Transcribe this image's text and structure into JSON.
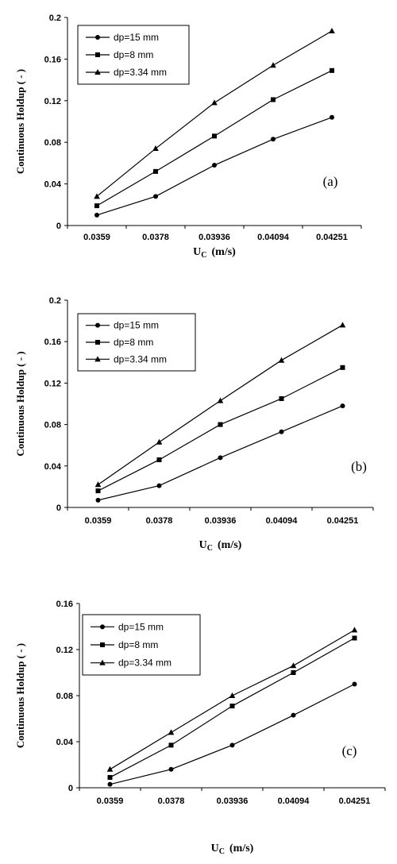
{
  "chart_data": [
    {
      "type": "line",
      "panel_label": "(a)",
      "categories": [
        "0.0359",
        "0.0378",
        "0.03936",
        "0.04094",
        "0.04251"
      ],
      "ylabel": "Continuous Holdup ( - )",
      "xlabel_main": "U",
      "xlabel_sub": "C",
      "xlabel_unit": "(m/s)",
      "ylim": [
        0,
        0.2
      ],
      "yticks": [
        "0",
        "0.04",
        "0.08",
        "0.12",
        "0.16",
        "0.2"
      ],
      "legend_position": "top-left",
      "grid": false,
      "series": [
        {
          "name": "dp=15 mm",
          "marker": "circle",
          "values": [
            0.01,
            0.028,
            0.058,
            0.083,
            0.104
          ]
        },
        {
          "name": "dp=8 mm",
          "marker": "square",
          "values": [
            0.019,
            0.052,
            0.086,
            0.121,
            0.149
          ]
        },
        {
          "name": "dp=3.34 mm",
          "marker": "triangle",
          "values": [
            0.028,
            0.074,
            0.118,
            0.154,
            0.187
          ]
        }
      ]
    },
    {
      "type": "line",
      "panel_label": "(b)",
      "categories": [
        "0.0359",
        "0.0378",
        "0.03936",
        "0.04094",
        "0.04251"
      ],
      "ylabel": "Continuous Holdup ( - )",
      "xlabel_main": "U",
      "xlabel_sub": "C",
      "xlabel_unit": "(m/s)",
      "ylim": [
        0,
        0.2
      ],
      "yticks": [
        "0",
        "0.04",
        "0.08",
        "0.12",
        "0.16",
        "0.2"
      ],
      "legend_position": "top-left",
      "grid": false,
      "series": [
        {
          "name": "dp=15 mm",
          "marker": "circle",
          "values": [
            0.007,
            0.021,
            0.048,
            0.073,
            0.098
          ]
        },
        {
          "name": "dp=8 mm",
          "marker": "square",
          "values": [
            0.016,
            0.046,
            0.08,
            0.105,
            0.135
          ]
        },
        {
          "name": "dp=3.34 mm",
          "marker": "triangle",
          "values": [
            0.022,
            0.063,
            0.103,
            0.142,
            0.176
          ]
        }
      ]
    },
    {
      "type": "line",
      "panel_label": "(c)",
      "categories": [
        "0.0359",
        "0.0378",
        "0.03936",
        "0.04094",
        "0.04251"
      ],
      "ylabel": "Continuous Holdup ( - )",
      "xlabel_main": "U",
      "xlabel_sub": "C",
      "xlabel_unit": "(m/s)",
      "ylim": [
        0,
        0.16
      ],
      "yticks": [
        "0",
        "0.04",
        "0.08",
        "0.12",
        "0.16"
      ],
      "legend_position": "top-left",
      "grid": false,
      "series": [
        {
          "name": "dp=15 mm",
          "marker": "circle",
          "values": [
            0.003,
            0.016,
            0.037,
            0.063,
            0.09
          ]
        },
        {
          "name": "dp=8 mm",
          "marker": "square",
          "values": [
            0.009,
            0.037,
            0.071,
            0.1,
            0.13
          ]
        },
        {
          "name": "dp=3.34 mm",
          "marker": "triangle",
          "values": [
            0.016,
            0.048,
            0.08,
            0.106,
            0.137
          ]
        }
      ]
    }
  ]
}
